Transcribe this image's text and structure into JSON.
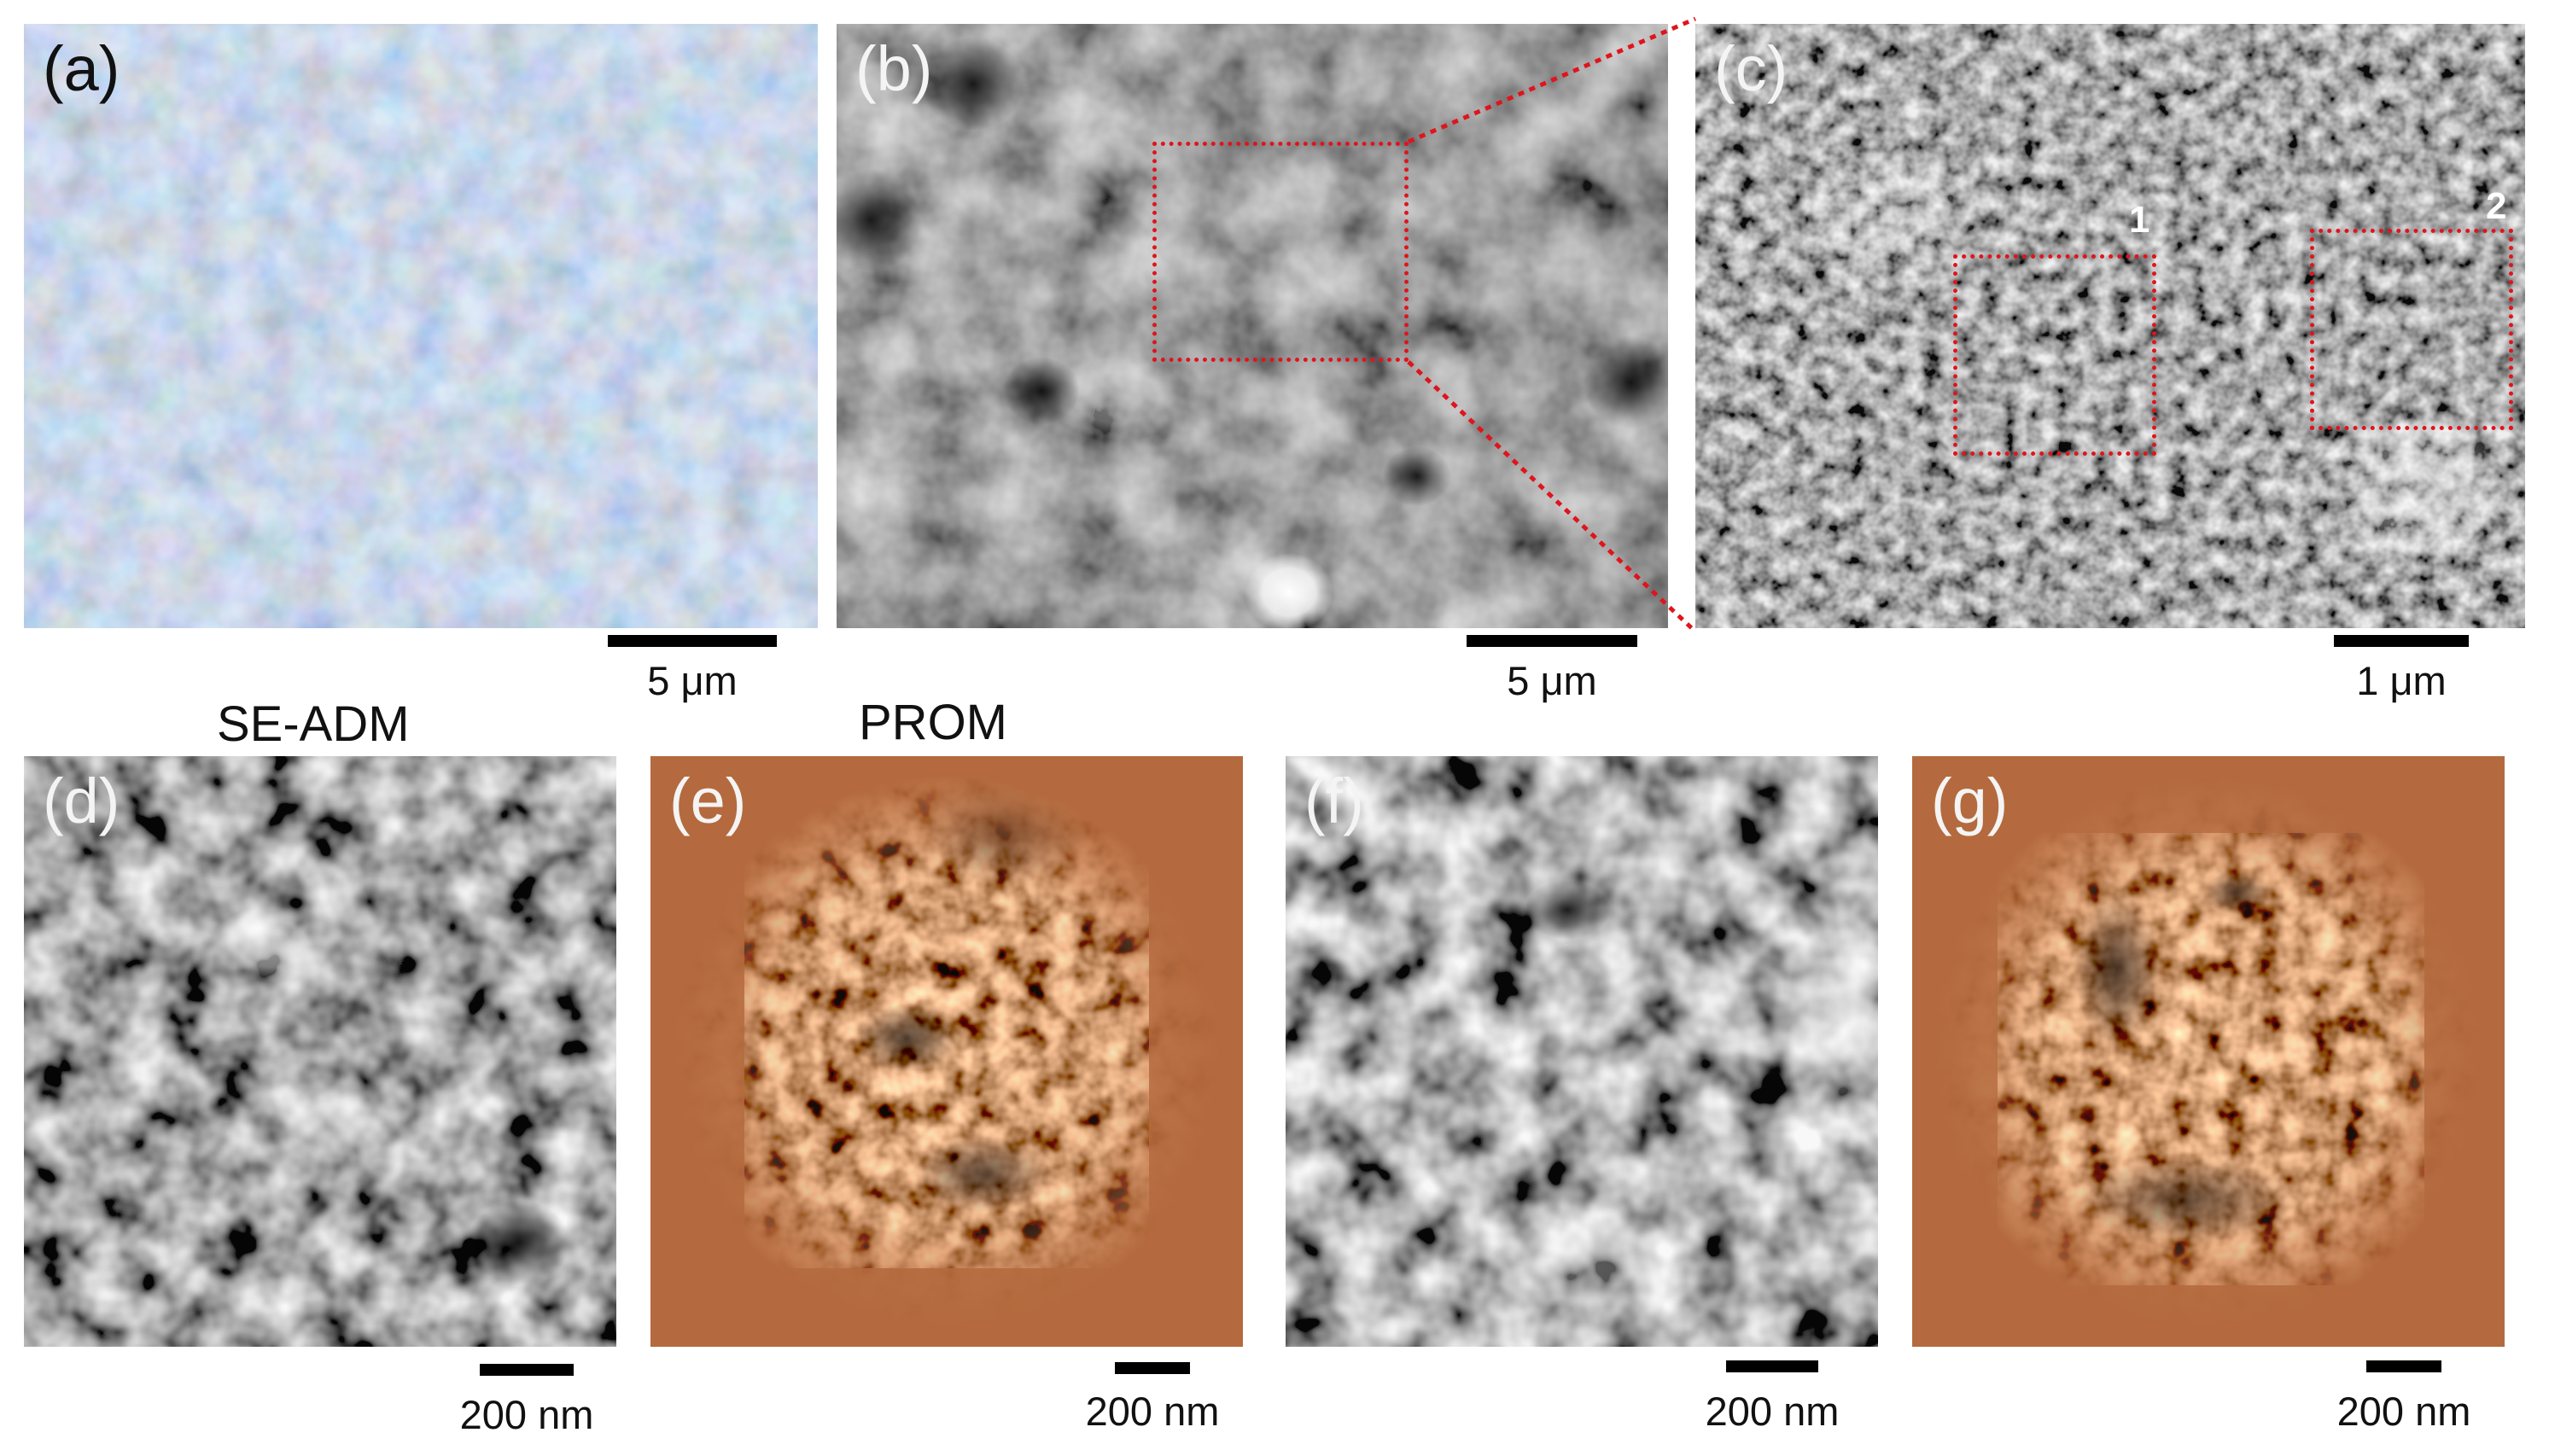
{
  "panels": {
    "a": {
      "label": "(a)",
      "scale_label": "5 μm"
    },
    "b": {
      "label": "(b)",
      "scale_label": "5 μm"
    },
    "c": {
      "label": "(c)",
      "scale_label": "1 μm",
      "roi_1": "1",
      "roi_2": "2"
    },
    "d": {
      "label": "(d)",
      "scale_label": "200 nm"
    },
    "e": {
      "label": "(e)",
      "scale_label": "200 nm"
    },
    "f": {
      "label": "(f)",
      "scale_label": "200 nm"
    },
    "g": {
      "label": "(g)",
      "scale_label": "200 nm"
    }
  },
  "column_titles": {
    "se_adm": "SE-ADM",
    "prom": "PROM"
  },
  "colors": {
    "roi_box": "#e0141c",
    "prom_base": "#b46a3e",
    "optical_base": "#8cc4e6"
  }
}
